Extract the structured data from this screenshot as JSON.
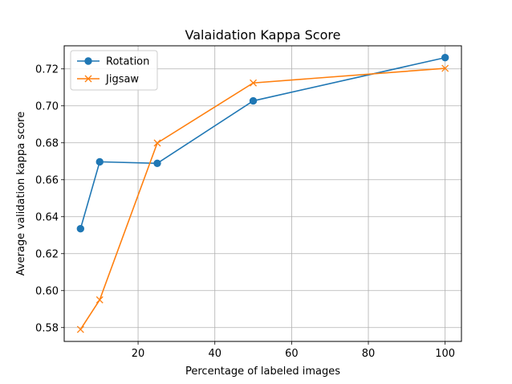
{
  "chart_data": {
    "type": "line",
    "title": "Valaidation Kappa Score",
    "xlabel": "Percentage of labeled images",
    "ylabel": "Average validation kappa score",
    "xlim": [
      0.75,
      104.25
    ],
    "ylim": [
      0.5725,
      0.7325
    ],
    "xticks": [
      20,
      40,
      60,
      80,
      100
    ],
    "yticks": [
      0.58,
      0.6,
      0.62,
      0.64,
      0.66,
      0.68,
      0.7,
      0.72
    ],
    "xtick_labels": [
      "20",
      "40",
      "60",
      "80",
      "100"
    ],
    "ytick_labels": [
      "0.58",
      "0.60",
      "0.62",
      "0.64",
      "0.66",
      "0.68",
      "0.70",
      "0.72"
    ],
    "grid": true,
    "legend_position": "top-left",
    "series": [
      {
        "name": "Rotation",
        "color": "#1f77b4",
        "marker": "circle",
        "x": [
          5,
          10,
          25,
          50,
          100
        ],
        "y": [
          0.6335,
          0.6697,
          0.6689,
          0.7027,
          0.7261
        ]
      },
      {
        "name": "Jigsaw",
        "color": "#ff7f0e",
        "marker": "x",
        "x": [
          5,
          10,
          25,
          50,
          100
        ],
        "y": [
          0.579,
          0.595,
          0.6799,
          0.7124,
          0.7203
        ]
      }
    ]
  }
}
